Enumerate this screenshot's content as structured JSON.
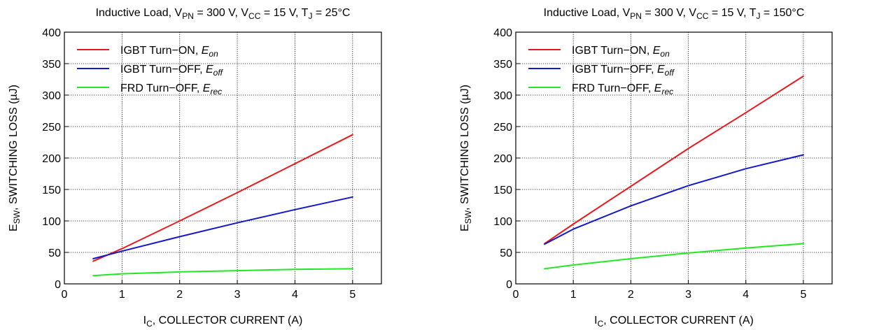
{
  "chart_data": [
    {
      "type": "line",
      "title": {
        "parts": [
          {
            "t": "Inductive Load, V"
          },
          {
            "t": "PN",
            "sub": true
          },
          {
            "t": " = 300 V, V"
          },
          {
            "t": "CC",
            "sub": true
          },
          {
            "t": " = 15 V, T"
          },
          {
            "t": "J",
            "sub": true
          },
          {
            "t": " = 25°C"
          }
        ]
      },
      "xlabel": {
        "parts": [
          {
            "t": "I"
          },
          {
            "t": "C",
            "sub": true
          },
          {
            "t": ", COLLECTOR CURRENT (A)"
          }
        ]
      },
      "ylabel": {
        "parts": [
          {
            "t": "E"
          },
          {
            "t": "SW",
            "sub": true
          },
          {
            "t": ", SWITCHING LOSS (µJ)"
          }
        ]
      },
      "xlim": [
        0,
        5.5
      ],
      "ylim": [
        0,
        400
      ],
      "xticks": [
        0,
        1,
        2,
        3,
        4,
        5
      ],
      "yticks": [
        0,
        50,
        100,
        150,
        200,
        250,
        300,
        350,
        400
      ],
      "grid": true,
      "legend_position": "top-left",
      "series": [
        {
          "name": {
            "parts": [
              {
                "t": "IGBT Turn−ON, "
              },
              {
                "t": "E",
                "it": true
              },
              {
                "t": "on",
                "it": true,
                "sub": true
              }
            ]
          },
          "color": "#e8191c",
          "x": [
            0.5,
            1,
            2,
            3,
            4,
            5
          ],
          "y": [
            36,
            56,
            100,
            145,
            191,
            237
          ]
        },
        {
          "name": {
            "parts": [
              {
                "t": "IGBT Turn−OFF, "
              },
              {
                "t": "E",
                "it": true
              },
              {
                "t": "off",
                "it": true,
                "sub": true
              }
            ]
          },
          "color": "#1418c8",
          "x": [
            0.5,
            1,
            2,
            3,
            4,
            5
          ],
          "y": [
            40,
            52,
            75,
            97,
            118,
            138
          ]
        },
        {
          "name": {
            "parts": [
              {
                "t": "FRD Turn−OFF, "
              },
              {
                "t": "E",
                "it": true
              },
              {
                "t": "rec",
                "it": true,
                "sub": true
              }
            ]
          },
          "color": "#22e822",
          "x": [
            0.5,
            1,
            2,
            3,
            4,
            5
          ],
          "y": [
            13,
            16,
            19,
            21,
            23,
            24
          ]
        }
      ]
    },
    {
      "type": "line",
      "title": {
        "parts": [
          {
            "t": "Inductive Load, V"
          },
          {
            "t": "PN",
            "sub": true
          },
          {
            "t": " = 300 V, V"
          },
          {
            "t": "CC",
            "sub": true
          },
          {
            "t": " = 15 V, T"
          },
          {
            "t": "J",
            "sub": true
          },
          {
            "t": " = 150°C"
          }
        ]
      },
      "xlabel": {
        "parts": [
          {
            "t": "I"
          },
          {
            "t": "C",
            "sub": true
          },
          {
            "t": ", COLLECTOR CURRENT (A)"
          }
        ]
      },
      "ylabel": {
        "parts": [
          {
            "t": "E"
          },
          {
            "t": "SW",
            "sub": true
          },
          {
            "t": ", SWITCHING LOSS (µJ)"
          }
        ]
      },
      "xlim": [
        0,
        5.5
      ],
      "ylim": [
        0,
        400
      ],
      "xticks": [
        0,
        1,
        2,
        3,
        4,
        5
      ],
      "yticks": [
        0,
        50,
        100,
        150,
        200,
        250,
        300,
        350,
        400
      ],
      "grid": true,
      "legend_position": "top-left",
      "series": [
        {
          "name": {
            "parts": [
              {
                "t": "IGBT Turn−ON, "
              },
              {
                "t": "E",
                "it": true
              },
              {
                "t": "on",
                "it": true,
                "sub": true
              }
            ]
          },
          "color": "#e8191c",
          "x": [
            0.5,
            1,
            2,
            3,
            4,
            5
          ],
          "y": [
            64,
            95,
            155,
            215,
            272,
            330
          ]
        },
        {
          "name": {
            "parts": [
              {
                "t": "IGBT Turn−OFF, "
              },
              {
                "t": "E",
                "it": true
              },
              {
                "t": "off",
                "it": true,
                "sub": true
              }
            ]
          },
          "color": "#1418c8",
          "x": [
            0.5,
            1,
            2,
            3,
            4,
            5
          ],
          "y": [
            63,
            87,
            124,
            156,
            183,
            205
          ]
        },
        {
          "name": {
            "parts": [
              {
                "t": "FRD Turn−OFF, "
              },
              {
                "t": "E",
                "it": true
              },
              {
                "t": "rec",
                "it": true,
                "sub": true
              }
            ]
          },
          "color": "#22e822",
          "x": [
            0.5,
            1,
            2,
            3,
            4,
            5
          ],
          "y": [
            24,
            30,
            40,
            49,
            57,
            64
          ]
        }
      ]
    }
  ]
}
